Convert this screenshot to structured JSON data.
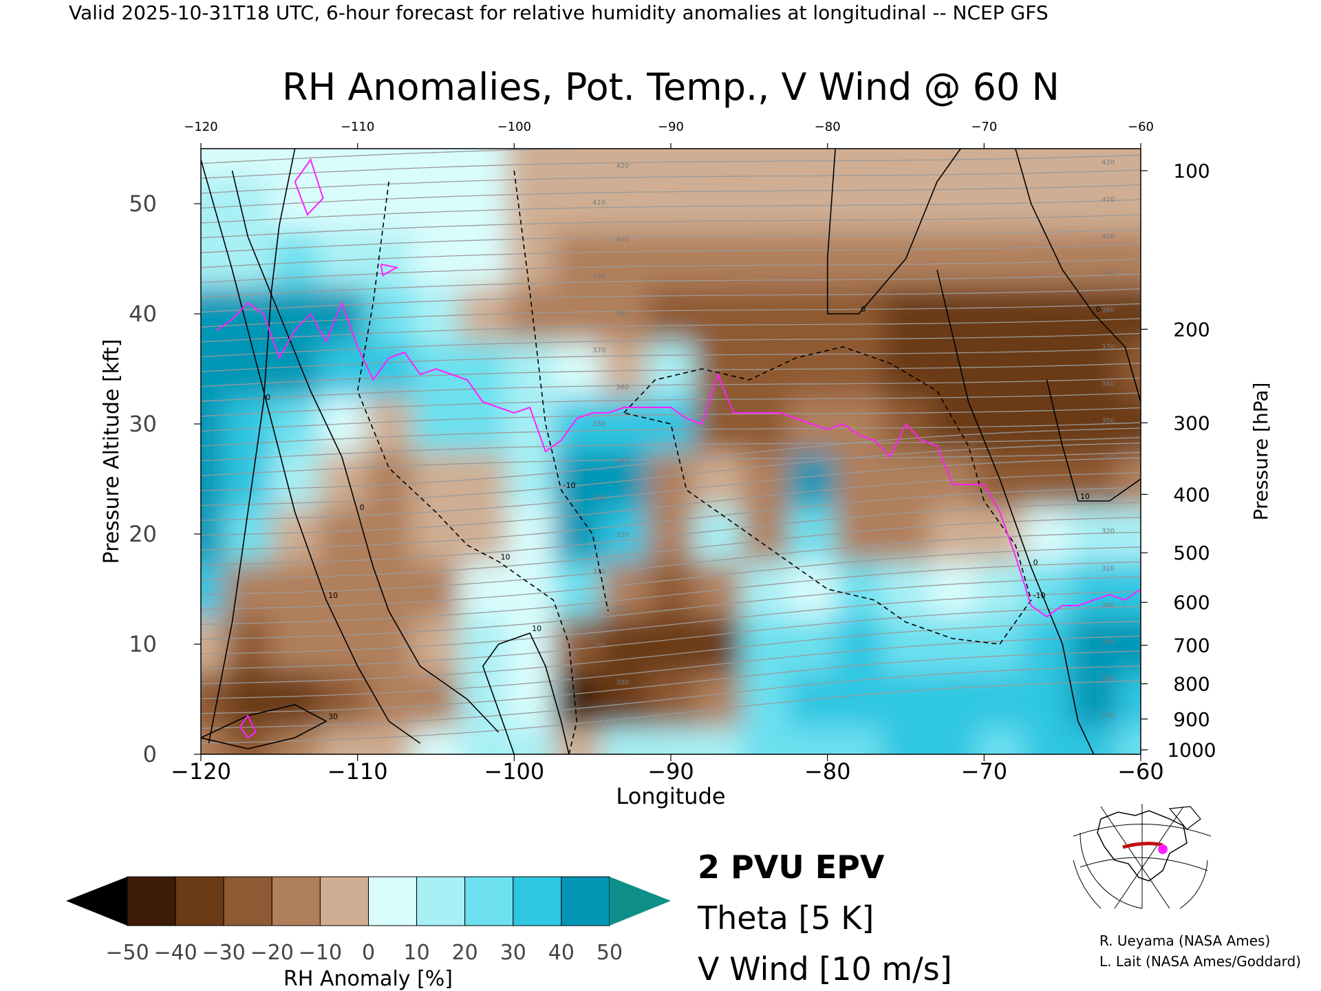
{
  "header": {
    "valid_line": "Valid 2025-10-31T18 UTC, 6-hour forecast for relative humidity anomalies at longitudinal -- NCEP GFS"
  },
  "chart_data": {
    "type": "heatmap",
    "title": "RH Anomalies, Pot. Temp., V Wind @ 60 N",
    "xlabel": "Longitude",
    "ylabel_left": "Pressure Altitude [kft]",
    "ylabel_right": "Pressure [hPa]",
    "xlim": [
      -120,
      -60
    ],
    "ylim_kft": [
      0,
      55
    ],
    "x_ticks": [
      "-120",
      "-110",
      "-100",
      "-90",
      "-80",
      "-70",
      "-60"
    ],
    "top_ticks": [
      "-120",
      "-110",
      "-100",
      "-90",
      "-80",
      "-70",
      "-60"
    ],
    "y_ticks_kft": [
      "0",
      "10",
      "20",
      "30",
      "40",
      "50"
    ],
    "pressure_ticks": [
      {
        "label": "100",
        "kft": 53
      },
      {
        "label": "200",
        "kft": 38.6
      },
      {
        "label": "300",
        "kft": 30.1
      },
      {
        "label": "400",
        "kft": 23.6
      },
      {
        "label": "500",
        "kft": 18.3
      },
      {
        "label": "600",
        "kft": 13.8
      },
      {
        "label": "700",
        "kft": 9.9
      },
      {
        "label": "800",
        "kft": 6.4
      },
      {
        "label": "900",
        "kft": 3.2
      },
      {
        "label": "1000",
        "kft": 0.4
      }
    ],
    "rh_anomaly_grid": {
      "lons": [
        -120,
        -117,
        -114,
        -111,
        -108,
        -105,
        -102,
        -99,
        -96,
        -93,
        -90,
        -87,
        -84,
        -81,
        -78,
        -75,
        -72,
        -69,
        -66,
        -63,
        -60
      ],
      "kft": [
        0,
        5,
        10,
        15,
        20,
        25,
        30,
        35,
        40,
        45,
        50,
        55
      ],
      "values": [
        [
          -20,
          -25,
          -20,
          -10,
          -5,
          5,
          15,
          10,
          -5,
          10,
          10,
          15,
          20,
          25,
          25,
          30,
          30,
          25,
          30,
          35,
          20
        ],
        [
          -30,
          -35,
          -40,
          -30,
          -20,
          -15,
          10,
          5,
          -45,
          -35,
          -25,
          -15,
          25,
          30,
          30,
          35,
          35,
          30,
          35,
          40,
          35
        ],
        [
          -10,
          -25,
          -20,
          -15,
          -15,
          -10,
          10,
          5,
          -30,
          -35,
          -40,
          -35,
          20,
          25,
          30,
          25,
          25,
          20,
          30,
          45,
          40
        ],
        [
          35,
          -20,
          -15,
          -20,
          -20,
          -15,
          5,
          0,
          25,
          -20,
          -25,
          -15,
          10,
          5,
          20,
          15,
          5,
          15,
          25,
          35,
          30
        ],
        [
          40,
          20,
          -10,
          -15,
          -15,
          -10,
          -5,
          5,
          45,
          30,
          -20,
          15,
          -15,
          20,
          -20,
          -15,
          -10,
          -5,
          5,
          10,
          15
        ],
        [
          45,
          30,
          10,
          -5,
          -15,
          -10,
          -5,
          10,
          50,
          40,
          -15,
          -10,
          -20,
          40,
          -15,
          -20,
          -20,
          -25,
          -30,
          -25,
          -20
        ],
        [
          45,
          35,
          20,
          5,
          -5,
          20,
          20,
          15,
          35,
          35,
          30,
          -25,
          -25,
          -20,
          -20,
          -30,
          -35,
          -40,
          -40,
          -40,
          -35
        ],
        [
          50,
          45,
          40,
          35,
          30,
          25,
          20,
          10,
          5,
          -5,
          15,
          -25,
          -25,
          -25,
          -30,
          -35,
          -40,
          -40,
          -40,
          -35,
          -30
        ],
        [
          40,
          45,
          45,
          40,
          25,
          10,
          -10,
          -15,
          -20,
          -20,
          -25,
          -25,
          -30,
          -30,
          -30,
          -35,
          -35,
          -35,
          -35,
          -35,
          -35
        ],
        [
          15,
          15,
          20,
          15,
          10,
          5,
          0,
          -10,
          -15,
          -15,
          -15,
          -15,
          -15,
          -15,
          -15,
          -15,
          -15,
          -15,
          -15,
          -15,
          -15
        ],
        [
          15,
          10,
          5,
          5,
          5,
          5,
          0,
          -5,
          -5,
          -5,
          -5,
          -5,
          -5,
          -5,
          -5,
          -5,
          -5,
          -5,
          -5,
          -5,
          -5
        ],
        [
          0,
          0,
          0,
          0,
          0,
          0,
          0,
          -2,
          -2,
          -2,
          -2,
          -2,
          -2,
          -2,
          -2,
          -2,
          -2,
          -2,
          -2,
          -2,
          -2
        ]
      ]
    },
    "theta_contour_labels": [
      "270",
      "280",
      "290",
      "300",
      "310",
      "320",
      "330",
      "340",
      "350",
      "360",
      "370",
      "380",
      "390",
      "400",
      "410",
      "420"
    ],
    "theta_interval_K": 5,
    "v_wind_interval_mps": 10,
    "v_wind_contour_labels": [
      "0",
      "10",
      "-10",
      "30"
    ],
    "pvu_line_2pvu": [
      [
        -119,
        38.5
      ],
      [
        -118,
        39.5
      ],
      [
        -117,
        41
      ],
      [
        -116,
        40
      ],
      [
        -115,
        36
      ],
      [
        -114,
        38.5
      ],
      [
        -113,
        40
      ],
      [
        -112,
        37.5
      ],
      [
        -111,
        41
      ],
      [
        -110,
        37
      ],
      [
        -109,
        34
      ],
      [
        -108,
        36
      ],
      [
        -107,
        36.5
      ],
      [
        -106,
        34.5
      ],
      [
        -105,
        35
      ],
      [
        -104,
        34.5
      ],
      [
        -103,
        34
      ],
      [
        -102,
        32
      ],
      [
        -101,
        31.5
      ],
      [
        -100,
        31
      ],
      [
        -99,
        31.5
      ],
      [
        -98,
        27.5
      ],
      [
        -97,
        28.5
      ],
      [
        -96,
        30.5
      ],
      [
        -95,
        31
      ],
      [
        -94,
        31
      ],
      [
        -93,
        31.5
      ],
      [
        -92,
        31.5
      ],
      [
        -91,
        31.5
      ],
      [
        -90,
        31.5
      ],
      [
        -89,
        30.5
      ],
      [
        -88,
        30
      ],
      [
        -87,
        34.5
      ],
      [
        -86,
        31
      ],
      [
        -85,
        31
      ],
      [
        -84,
        31
      ],
      [
        -83,
        31
      ],
      [
        -82,
        30.5
      ],
      [
        -81,
        30
      ],
      [
        -80,
        29.5
      ],
      [
        -79,
        30
      ],
      [
        -78,
        29
      ],
      [
        -77,
        28.5
      ],
      [
        -76,
        27
      ],
      [
        -75,
        30
      ],
      [
        -74,
        28.5
      ],
      [
        -73,
        28
      ],
      [
        -72,
        24.5
      ],
      [
        -71,
        24.5
      ],
      [
        -70,
        24.5
      ],
      [
        -69,
        22
      ],
      [
        -68,
        18
      ],
      [
        -67,
        13.5
      ],
      [
        -66,
        12.5
      ],
      [
        -65,
        13.5
      ],
      [
        -64,
        13.5
      ],
      [
        -63,
        14
      ],
      [
        -62,
        14.5
      ],
      [
        -61,
        14
      ],
      [
        -60,
        15
      ]
    ],
    "colorbar": {
      "label": "RH Anomaly [%]",
      "tick_labels": [
        "-50",
        "-40",
        "-30",
        "-20",
        "-10",
        "0",
        "10",
        "20",
        "30",
        "40",
        "50"
      ],
      "colors": [
        "#3d1c05",
        "#6b3a16",
        "#8f5a33",
        "#b07f5b",
        "#cfae93",
        "#eedfd4",
        "#d9fcfc",
        "#a8f0f5",
        "#6ce0ef",
        "#2fc6e2",
        "#0596b6"
      ],
      "under_color": "#000000",
      "over_color": "#0e8f89"
    },
    "legend": {
      "pvu_label": "2 PVU EPV",
      "pvu_color": "#ff20ff",
      "theta_label": "Theta [5 K]",
      "theta_color": "#b5b5b5",
      "wind_label": "V Wind [10 m/s]",
      "wind_color": "#000000"
    }
  },
  "credits": {
    "line1": "R. Ueyama (NASA Ames)",
    "line2": "L. Lait (NASA Ames/Goddard)"
  }
}
